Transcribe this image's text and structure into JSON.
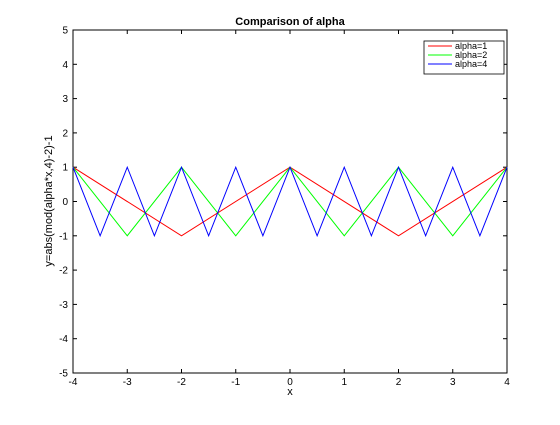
{
  "chart_data": {
    "type": "line",
    "title": "Comparison of alpha",
    "xlabel": "x",
    "ylabel": "y=abs(mod(alpha*x,4)-2)-1",
    "xlim": [
      -4,
      4
    ],
    "ylim": [
      -5,
      5
    ],
    "xticks": [
      -4,
      -3,
      -2,
      -1,
      0,
      1,
      2,
      3,
      4
    ],
    "yticks": [
      -5,
      -4,
      -3,
      -2,
      -1,
      0,
      1,
      2,
      3,
      4,
      5
    ],
    "grid": false,
    "legend_position": "top-right",
    "series": [
      {
        "name": "alpha=1",
        "color": "#ff0000",
        "x": [
          -4,
          -2,
          0,
          2,
          4
        ],
        "y": [
          1,
          -1,
          1,
          -1,
          1
        ]
      },
      {
        "name": "alpha=2",
        "color": "#00ff00",
        "x": [
          -4,
          -3,
          -2,
          -1,
          0,
          1,
          2,
          3,
          4
        ],
        "y": [
          1,
          -1,
          1,
          -1,
          1,
          -1,
          1,
          -1,
          1
        ]
      },
      {
        "name": "alpha=4",
        "color": "#0000ff",
        "x": [
          -4,
          -3.5,
          -3,
          -2.5,
          -2,
          -1.5,
          -1,
          -0.5,
          0,
          0.5,
          1,
          1.5,
          2,
          2.5,
          3,
          3.5,
          4
        ],
        "y": [
          1,
          -1,
          1,
          -1,
          1,
          -1,
          1,
          -1,
          1,
          -1,
          1,
          -1,
          1,
          -1,
          1,
          -1,
          1
        ]
      }
    ]
  }
}
